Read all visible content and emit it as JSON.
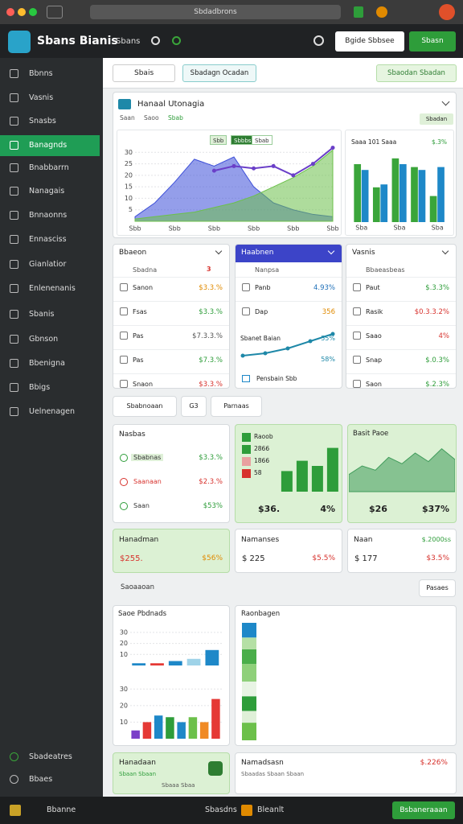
{
  "browser": {
    "url": "Sbdadbrons"
  },
  "header": {
    "title": "Sbans Bianis",
    "nav": "Sbans",
    "buttons": [
      "Bgide Sbbsee",
      "Sbasn"
    ]
  },
  "sidebar": {
    "items": [
      "Bbnns",
      "Vasnis",
      "Snasbs",
      "Banagnds",
      "Bnabbarrn",
      "Nanagais",
      "Bnnaonns",
      "Ennasciss",
      "Gianlatior",
      "Enlenenanis",
      "Sbanis",
      "Gbnson",
      "Bbenigna",
      "Bbigs",
      "Uelnenagen"
    ],
    "active": 3,
    "footer": [
      "Sbadeatres",
      "Bbaes"
    ]
  },
  "toolbar": {
    "select": "Sbais",
    "button": "Sbadagn Ocadan",
    "action": "Sbaodan Sbadan"
  },
  "main_card": {
    "title": "Hanaal Utonagia",
    "tabs": [
      "Saan",
      "Saoo",
      "Sbab"
    ],
    "button": "Sbadan",
    "legend": [
      "Sbb",
      "Sbbbs",
      "Sbab"
    ],
    "side_title": "Saaa 101 Saaa",
    "side_value": "$.3%"
  },
  "list_cards": [
    {
      "title": "Bbaeon",
      "subtitle": "Sbadna",
      "badge": "3",
      "rows": [
        {
          "label": "Sanon",
          "value": "$3.3.%",
          "color": "#e08a00"
        },
        {
          "label": "Fsas",
          "value": "$3.3.%",
          "color": "#2e9d3a"
        },
        {
          "label": "Pas",
          "value": "$7.3.3.%",
          "color": "#555555"
        },
        {
          "label": "Pas",
          "value": "$7.3.%",
          "color": "#2e9d3a"
        },
        {
          "label": "Snaon",
          "value": "$3.3.%",
          "color": "#d7322d"
        }
      ]
    },
    {
      "title": "Haabnen",
      "subtitle": "Nanpsa",
      "rows": [
        {
          "label": "Panb",
          "value": "4.93%",
          "color": "#1e6fb8"
        },
        {
          "label": "Dap",
          "value": "356",
          "color": "#e08a00"
        }
      ],
      "chart_label": "Sbanet Baian",
      "chart_values": [
        "55%",
        "58%"
      ],
      "footer": "Pensbain Sbb"
    },
    {
      "title": "Vasnis",
      "subtitle": "Bbaeasbeas",
      "rows": [
        {
          "label": "Paut",
          "value": "$.3.3%",
          "color": "#2e9d3a"
        },
        {
          "label": "Rasik",
          "value": "$0.3.3.2%",
          "color": "#d7322d"
        },
        {
          "label": "Saao",
          "value": "4%",
          "color": "#d7322d"
        },
        {
          "label": "Snap",
          "value": "$.0.3%",
          "color": "#2e9d3a"
        },
        {
          "label": "Saon",
          "value": "$.2.3%",
          "color": "#2e9d3a"
        }
      ]
    }
  ],
  "tabs": [
    "Sbabnoaan",
    "G3",
    "Parnaas"
  ],
  "nasbas": {
    "title": "Nasbas",
    "rows": [
      {
        "label": "Sbabnas",
        "value": "$3.3.%",
        "color": "#2e9d3a"
      },
      {
        "label": "Saanaan",
        "value": "$2.3.%",
        "color": "#d7322d"
      },
      {
        "label": "Saan",
        "value": "$53%",
        "color": "#2e9d3a"
      }
    ]
  },
  "green_cards": [
    {
      "labels": [
        "Raoob",
        "2866",
        "1866",
        "58"
      ],
      "value": "$36.",
      "change": "4%"
    },
    {
      "title": "Basit Paoe",
      "value": "$26",
      "change": "$37%"
    }
  ],
  "summary_cards": [
    {
      "title": "Hanadman",
      "value": "$255.",
      "change": "$56%",
      "green": true
    },
    {
      "title": "Namanses",
      "value": "$ 225",
      "change": "$5.5%",
      "green": false
    },
    {
      "title": "Naan",
      "extra": "$.2000ss",
      "value": "$ 177",
      "change": "$3.5%",
      "green": false
    }
  ],
  "section": {
    "title": "Saoaaoan",
    "button": "Pasaes"
  },
  "lower": {
    "left_title": "Saoe Pbdnads",
    "right_title": "Raonbagen"
  },
  "footer_cards": {
    "left": "Hanadaan",
    "left_sub": "Sbaan Sbaan",
    "left_caption": "Sbaaa Sbaa",
    "right": "Namadsasn",
    "right_value": "$.226%",
    "right_sub": "Sbaadas Sbaan Sbaan"
  },
  "status": {
    "left": "Bbanne",
    "middle": "Sbasdns",
    "right": "Bleanlt",
    "button": "Bsbaneraaan"
  },
  "chart_data": [
    {
      "type": "area",
      "categories": [
        "Sbb",
        null,
        "Sbb",
        null,
        "Sbb",
        null,
        "Sbb",
        null,
        "Sbb",
        null,
        "Sbb"
      ],
      "ylim": [
        0,
        35
      ],
      "yticks": [
        5,
        10,
        15,
        20,
        25,
        30
      ],
      "grid": true,
      "series": [
        {
          "color": "#3d4fd8",
          "values": [
            2,
            8,
            17,
            27,
            24,
            28,
            15,
            8,
            5,
            3,
            2
          ]
        },
        {
          "color": "#6cc04a",
          "values": [
            1,
            2,
            3,
            4,
            6,
            8,
            11,
            15,
            19,
            24,
            31
          ]
        },
        {
          "color": "#6a3fc8",
          "style": "line",
          "values": [
            null,
            null,
            null,
            null,
            22,
            24,
            23,
            24,
            20,
            25,
            32
          ]
        }
      ]
    },
    {
      "type": "bar",
      "categories": [
        "Sba",
        null,
        "Sba",
        null,
        "Sba"
      ],
      "ylim": [
        0,
        25
      ],
      "series": [
        {
          "color": "#3aa53a",
          "values": [
            20,
            12,
            22,
            19,
            9
          ]
        },
        {
          "color": "#1e88c8",
          "values": [
            18,
            13,
            20,
            18,
            19
          ]
        }
      ]
    },
    {
      "type": "line",
      "categories": [
        null,
        null,
        null,
        null,
        null
      ],
      "ylim": [
        0,
        12
      ],
      "series": [
        {
          "color": "#1e88a8",
          "values": [
            2,
            3,
            5,
            8,
            11
          ]
        }
      ]
    },
    {
      "type": "bar",
      "categories": [
        null,
        null,
        null,
        null
      ],
      "ylim": [
        0,
        20
      ],
      "series": [
        {
          "color": "#2e9d3a",
          "values": [
            8,
            12,
            10,
            17
          ]
        }
      ]
    },
    {
      "type": "area",
      "categories": [
        null,
        null,
        null,
        null,
        null,
        null,
        null,
        null,
        null
      ],
      "ylim": [
        0,
        24
      ],
      "series": [
        {
          "color": "#3f9b5a",
          "values": [
            8,
            12,
            10,
            16,
            13,
            18,
            14,
            20,
            15
          ]
        }
      ]
    },
    {
      "type": "bar",
      "categories": [
        null,
        null,
        null,
        null,
        null
      ],
      "ylim": [
        0,
        35
      ],
      "yticks": [
        10,
        20,
        30
      ],
      "grid": true,
      "series": [
        {
          "colors": [
            "#1e88c8",
            "#e53935",
            "#1e88c8",
            "#9fd3e8",
            "#1e88c8"
          ],
          "values": [
            2,
            2,
            4,
            6,
            14
          ]
        }
      ]
    },
    {
      "type": "bar",
      "categories": [
        null,
        null,
        null,
        null,
        null,
        null,
        null,
        null
      ],
      "ylim": [
        0,
        35
      ],
      "yticks": [
        10,
        20,
        30
      ],
      "grid": true,
      "series": [
        {
          "colors": [
            "#7b3fc8",
            "#e53935",
            "#1e88c8",
            "#2e9d3a",
            "#1e88c8",
            "#6cc04a",
            "#f08a24",
            "#e53935"
          ],
          "values": [
            5,
            10,
            14,
            13,
            10,
            13,
            10,
            24
          ]
        }
      ]
    },
    {
      "type": "bar",
      "stacked": true,
      "categories": [
        null
      ],
      "ylim": [
        0,
        80
      ],
      "series": [
        {
          "color": "#6cc04a",
          "values": [
            12
          ]
        },
        {
          "color": "#dff0d8",
          "values": [
            8
          ]
        },
        {
          "color": "#2e9d3a",
          "values": [
            10
          ]
        },
        {
          "color": "#e8f4e4",
          "values": [
            10
          ]
        },
        {
          "color": "#8fd07a",
          "values": [
            12
          ]
        },
        {
          "color": "#4aae4a",
          "values": [
            10
          ]
        },
        {
          "color": "#b5e0a5",
          "values": [
            8
          ]
        },
        {
          "color": "#1e88c8",
          "values": [
            10
          ]
        }
      ]
    }
  ]
}
